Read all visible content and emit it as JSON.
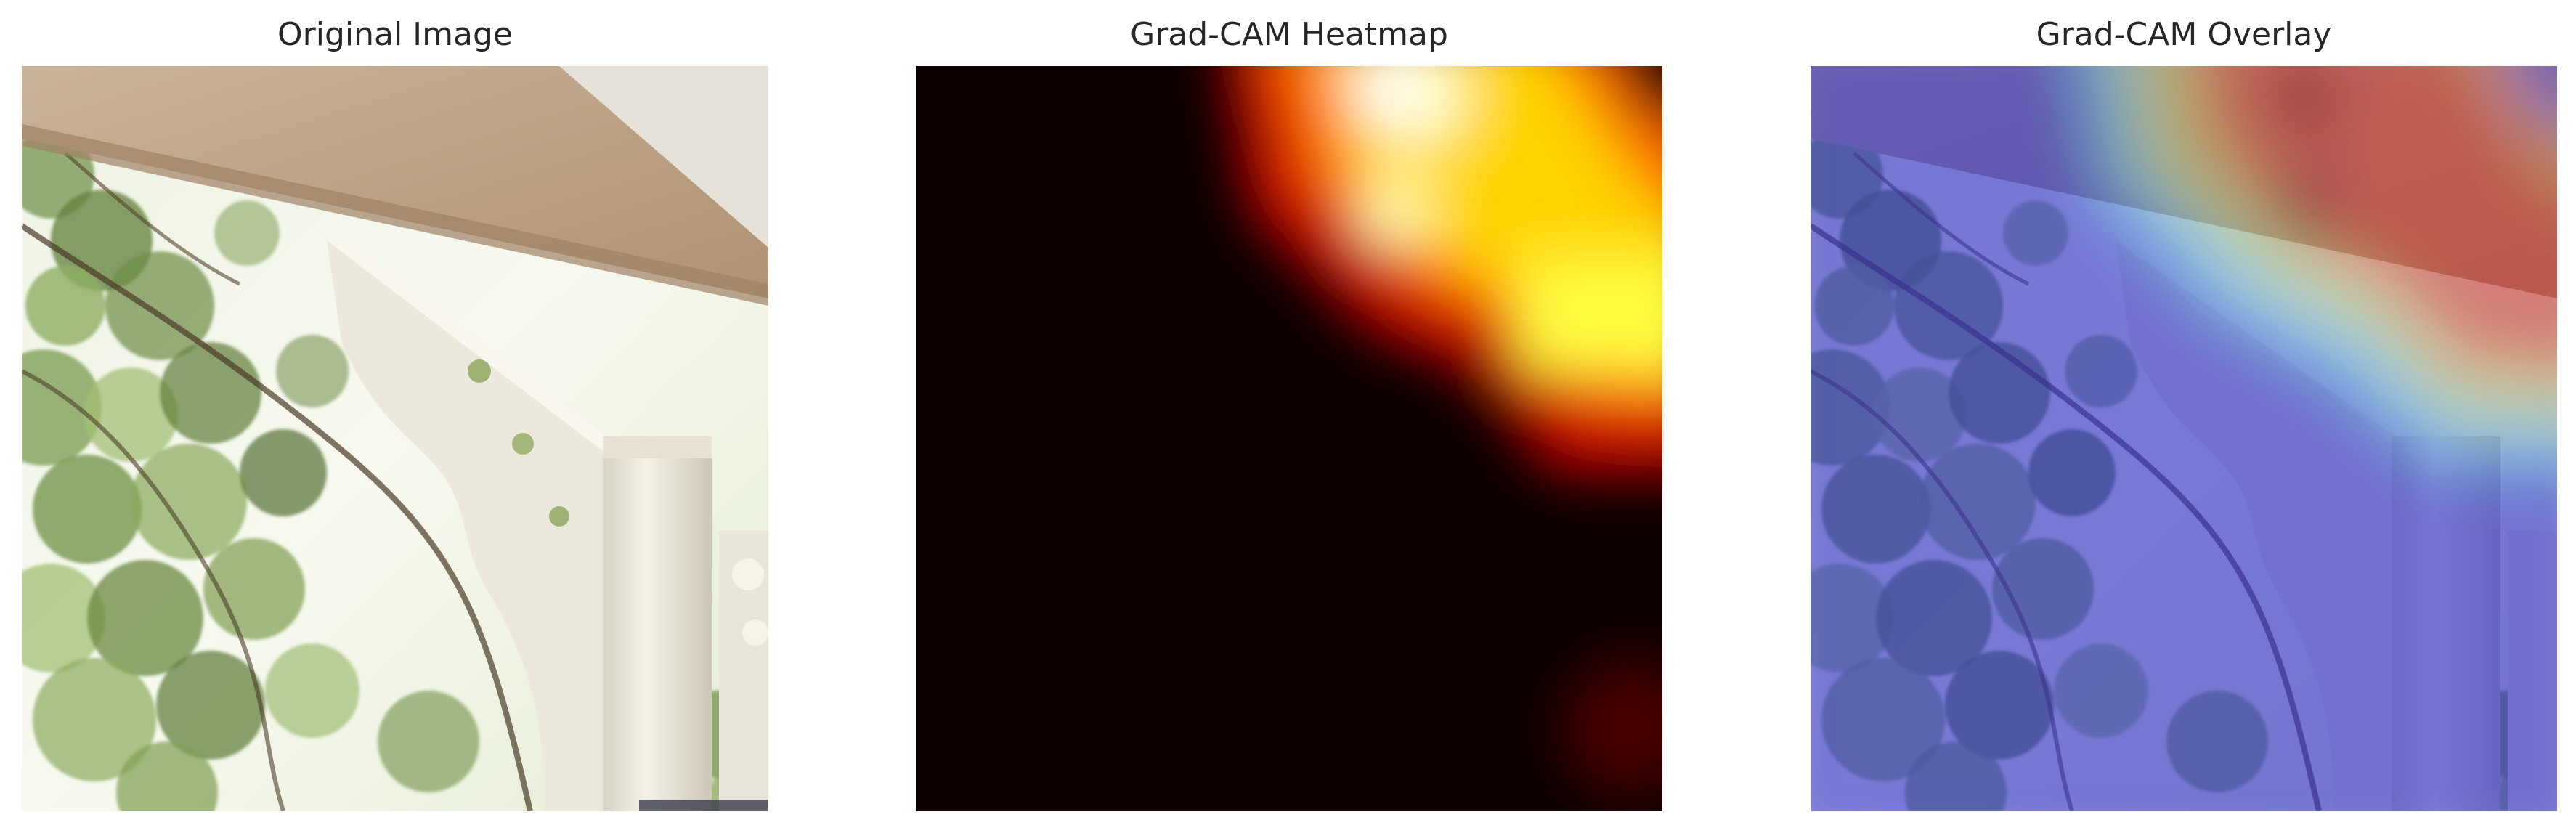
{
  "panels": [
    {
      "id": "original",
      "title": "Original Image"
    },
    {
      "id": "heatmap",
      "title": "Grad-CAM Heatmap"
    },
    {
      "id": "overlay",
      "title": "Grad-CAM Overlay"
    }
  ]
}
